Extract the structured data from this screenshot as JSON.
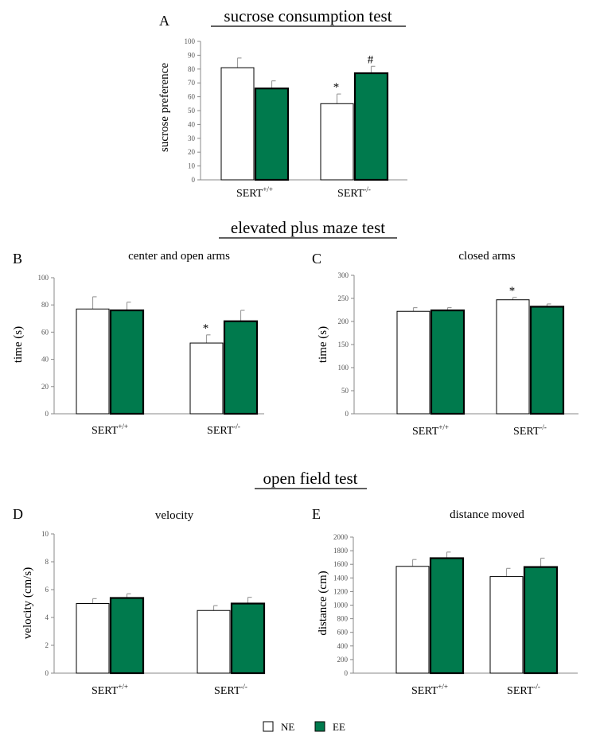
{
  "sections": {
    "sucrose": "sucrose consumption test",
    "epm": "elevated plus maze test",
    "oft": "open field test"
  },
  "legend": {
    "items": [
      {
        "label": "NE",
        "color": "#ffffff"
      },
      {
        "label": "EE",
        "color": "#007a4d"
      }
    ]
  },
  "colors": {
    "NE": "#ffffff",
    "EE": "#007a4d",
    "error": "#9e9e9e"
  },
  "chart_data": [
    {
      "panel": "A",
      "type": "bar",
      "title": "",
      "ylabel": "sucrose preference",
      "ylim": [
        0,
        100
      ],
      "yticks": [
        "0",
        "10",
        "20",
        "30",
        "40",
        "50",
        "60",
        "70",
        "80",
        "90",
        "100"
      ],
      "categories": [
        {
          "base": "SERT",
          "sup": "+/+"
        },
        {
          "base": "SERT",
          "sup": "-/-"
        }
      ],
      "series": [
        {
          "name": "NE",
          "values": [
            81,
            55
          ],
          "errors": [
            7,
            7
          ]
        },
        {
          "name": "EE",
          "values": [
            66,
            77
          ],
          "errors": [
            5.5,
            5
          ]
        }
      ],
      "annotations": [
        {
          "series": 0,
          "index": 1,
          "text": "*"
        },
        {
          "series": 1,
          "index": 1,
          "text": "#"
        }
      ]
    },
    {
      "panel": "B",
      "type": "bar",
      "title": "center and open arms",
      "ylabel": "time (s)",
      "ylim": [
        0,
        100
      ],
      "yticks": [
        "0",
        "20",
        "40",
        "60",
        "80",
        "100"
      ],
      "categories": [
        {
          "base": "SERT",
          "sup": "+/+"
        },
        {
          "base": "SERT",
          "sup": "-/-"
        }
      ],
      "series": [
        {
          "name": "NE",
          "values": [
            77,
            52
          ],
          "errors": [
            9,
            6
          ]
        },
        {
          "name": "EE",
          "values": [
            76,
            68
          ],
          "errors": [
            6,
            8
          ]
        }
      ],
      "annotations": [
        {
          "series": 0,
          "index": 1,
          "text": "*"
        }
      ]
    },
    {
      "panel": "C",
      "type": "bar",
      "title": "closed arms",
      "ylabel": "time (s)",
      "ylim": [
        0,
        300
      ],
      "yticks": [
        "0",
        "50",
        "100",
        "150",
        "200",
        "250",
        "300"
      ],
      "categories": [
        {
          "base": "SERT",
          "sup": "+/+"
        },
        {
          "base": "SERT",
          "sup": "-/-"
        }
      ],
      "series": [
        {
          "name": "NE",
          "values": [
            222,
            247
          ],
          "errors": [
            8,
            5
          ]
        },
        {
          "name": "EE",
          "values": [
            224,
            232
          ],
          "errors": [
            6,
            6
          ]
        }
      ],
      "annotations": [
        {
          "series": 0,
          "index": 1,
          "text": "*"
        }
      ]
    },
    {
      "panel": "D",
      "type": "bar",
      "title": "velocity",
      "ylabel": "velocity (cm/s)",
      "ylim": [
        0,
        10
      ],
      "yticks": [
        "0",
        "2",
        "4",
        "6",
        "8",
        "10"
      ],
      "categories": [
        {
          "base": "SERT",
          "sup": "+/+"
        },
        {
          "base": "SERT",
          "sup": "-/-"
        }
      ],
      "series": [
        {
          "name": "NE",
          "values": [
            5.0,
            4.5
          ],
          "errors": [
            0.35,
            0.35
          ]
        },
        {
          "name": "EE",
          "values": [
            5.4,
            5.0
          ],
          "errors": [
            0.3,
            0.45
          ]
        }
      ],
      "annotations": []
    },
    {
      "panel": "E",
      "type": "bar",
      "title": "distance moved",
      "ylabel": "distance (cm)",
      "ylim": [
        0,
        2000
      ],
      "yticks": [
        "0",
        "200",
        "400",
        "600",
        "800",
        "1000",
        "1200",
        "1400",
        "1600",
        "1800",
        "2000"
      ],
      "categories": [
        {
          "base": "SERT",
          "sup": "+/+"
        },
        {
          "base": "SERT",
          "sup": "-/-"
        }
      ],
      "series": [
        {
          "name": "NE",
          "values": [
            1570,
            1420
          ],
          "errors": [
            100,
            120
          ]
        },
        {
          "name": "EE",
          "values": [
            1690,
            1560
          ],
          "errors": [
            90,
            130
          ]
        }
      ],
      "annotations": []
    }
  ]
}
